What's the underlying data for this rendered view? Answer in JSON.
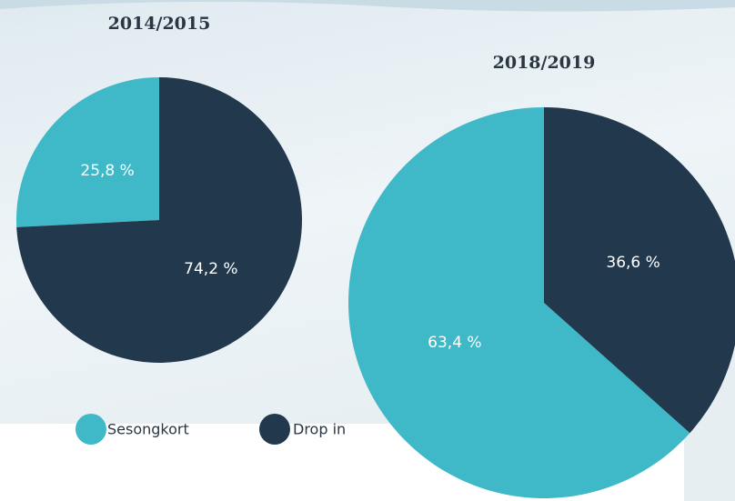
{
  "chart_data": [
    {
      "type": "pie",
      "title": "2014/2015",
      "categories": [
        "Sesongkort",
        "Drop in"
      ],
      "values": [
        25.8,
        74.2
      ],
      "value_labels": [
        "25,8 %",
        "74,2 %"
      ],
      "colors": [
        "#3fb8c8",
        "#22384d"
      ]
    },
    {
      "type": "pie",
      "title": "2018/2019",
      "categories": [
        "Sesongkort",
        "Drop in"
      ],
      "values": [
        63.4,
        36.6
      ],
      "value_labels": [
        "63,4 %",
        "36,6 %"
      ],
      "colors": [
        "#3fb8c8",
        "#22384d"
      ]
    }
  ]
}
